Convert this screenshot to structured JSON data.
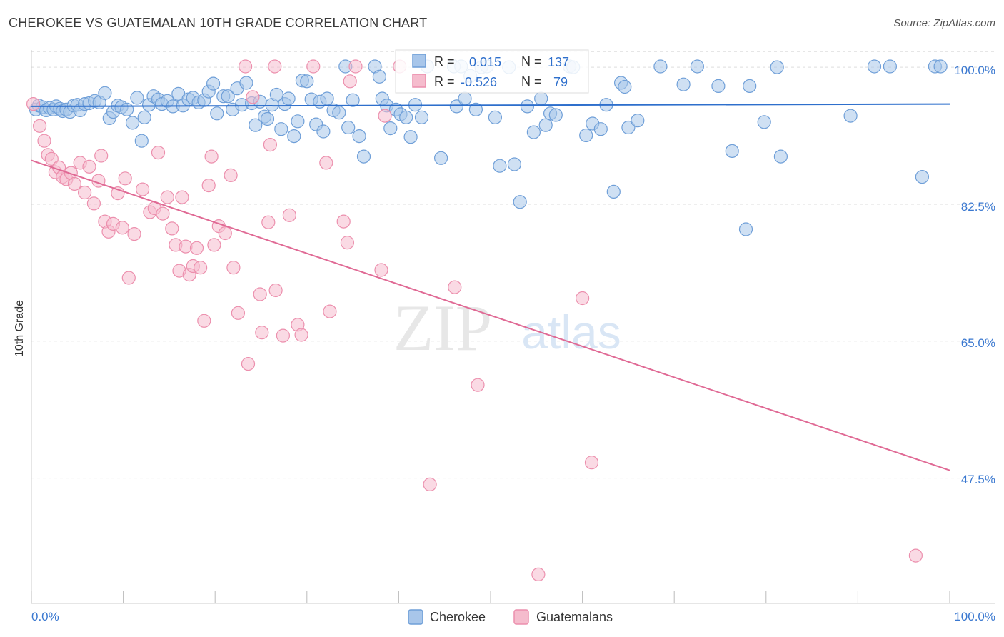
{
  "header": {
    "title": "CHEROKEE VS GUATEMALAN 10TH GRADE CORRELATION CHART",
    "source": "Source: ZipAtlas.com"
  },
  "watermark": {
    "zip": "ZIP",
    "atlas": "atlas"
  },
  "colors": {
    "cherokee_fill": "#a8c6ea",
    "cherokee_stroke": "#6f9fd8",
    "cherokee_line": "#2e6fcc",
    "guatemalan_fill": "#f5bccd",
    "guatemalan_stroke": "#ec8fad",
    "guatemalan_line": "#e06a95",
    "axis_value": "#3a78d0",
    "grid": "#dddddd"
  },
  "legend": {
    "r_label": "R =",
    "n_label": "N =",
    "entries": [
      {
        "r": "0.015",
        "n": "137"
      },
      {
        "r": "-0.526",
        "n": "79"
      }
    ]
  },
  "bottom_legend": [
    "Cherokee",
    "Guatemalans"
  ],
  "chart_data": {
    "type": "scatter",
    "title": "CHEROKEE VS GUATEMALAN 10TH GRADE CORRELATION CHART",
    "xlabel": "",
    "ylabel": "10th Grade",
    "xlim": [
      0,
      100
    ],
    "ylim": [
      31.5,
      102.2
    ],
    "x_tick_labels": [
      "0.0%",
      "100.0%"
    ],
    "y_ticks": [
      100.0,
      82.5,
      65.0,
      47.5
    ],
    "y_tick_labels": [
      "100.0%",
      "82.5%",
      "65.0%",
      "47.5%"
    ],
    "grid": true,
    "legend_position": "top-center",
    "series": [
      {
        "name": "Cherokee",
        "r": 0.015,
        "n": 137,
        "trend": {
          "x": [
            0,
            100
          ],
          "y": [
            95.0,
            95.3
          ]
        },
        "points": [
          [
            0.5,
            94.6
          ],
          [
            0.8,
            95.1
          ],
          [
            1.2,
            94.9
          ],
          [
            1.6,
            94.5
          ],
          [
            2.0,
            94.8
          ],
          [
            2.4,
            94.6
          ],
          [
            2.7,
            95.0
          ],
          [
            3.1,
            94.7
          ],
          [
            3.4,
            94.4
          ],
          [
            3.8,
            94.6
          ],
          [
            4.2,
            94.3
          ],
          [
            4.6,
            95.1
          ],
          [
            5.0,
            95.2
          ],
          [
            5.3,
            94.5
          ],
          [
            5.8,
            95.3
          ],
          [
            6.3,
            95.4
          ],
          [
            6.9,
            95.7
          ],
          [
            7.4,
            95.5
          ],
          [
            8.0,
            96.7
          ],
          [
            8.5,
            93.5
          ],
          [
            8.9,
            94.3
          ],
          [
            9.4,
            95.1
          ],
          [
            9.8,
            94.9
          ],
          [
            10.4,
            94.6
          ],
          [
            11.0,
            92.9
          ],
          [
            11.5,
            96.1
          ],
          [
            12.0,
            90.6
          ],
          [
            12.3,
            93.6
          ],
          [
            12.8,
            95.2
          ],
          [
            13.3,
            96.3
          ],
          [
            13.8,
            95.9
          ],
          [
            14.2,
            95.3
          ],
          [
            14.8,
            95.7
          ],
          [
            15.4,
            95.0
          ],
          [
            16.0,
            96.6
          ],
          [
            16.5,
            95.1
          ],
          [
            17.1,
            95.9
          ],
          [
            17.6,
            96.1
          ],
          [
            18.2,
            95.5
          ],
          [
            18.8,
            95.8
          ],
          [
            19.3,
            96.9
          ],
          [
            19.8,
            97.9
          ],
          [
            20.2,
            94.1
          ],
          [
            20.9,
            96.3
          ],
          [
            21.4,
            96.3
          ],
          [
            21.9,
            94.6
          ],
          [
            22.4,
            97.3
          ],
          [
            22.9,
            95.2
          ],
          [
            23.4,
            98.0
          ],
          [
            24.0,
            95.4
          ],
          [
            24.4,
            92.6
          ],
          [
            24.9,
            95.6
          ],
          [
            25.4,
            93.7
          ],
          [
            25.7,
            93.4
          ],
          [
            26.2,
            95.2
          ],
          [
            26.7,
            96.5
          ],
          [
            27.2,
            92.1
          ],
          [
            27.6,
            95.3
          ],
          [
            28.0,
            96.0
          ],
          [
            28.6,
            91.2
          ],
          [
            29.0,
            93.1
          ],
          [
            29.5,
            98.3
          ],
          [
            30.0,
            98.2
          ],
          [
            30.5,
            95.9
          ],
          [
            31.0,
            92.7
          ],
          [
            31.4,
            95.6
          ],
          [
            31.8,
            91.8
          ],
          [
            32.2,
            96.0
          ],
          [
            32.9,
            94.5
          ],
          [
            33.5,
            94.2
          ],
          [
            34.2,
            100.1
          ],
          [
            34.5,
            92.3
          ],
          [
            35.0,
            95.8
          ],
          [
            35.7,
            91.2
          ],
          [
            36.2,
            88.6
          ],
          [
            37.4,
            100.1
          ],
          [
            37.9,
            98.8
          ],
          [
            38.2,
            96.0
          ],
          [
            38.7,
            95.1
          ],
          [
            39.1,
            92.2
          ],
          [
            39.7,
            94.6
          ],
          [
            40.2,
            94.0
          ],
          [
            40.8,
            93.6
          ],
          [
            41.3,
            91.1
          ],
          [
            41.8,
            95.2
          ],
          [
            42.5,
            93.6
          ],
          [
            43.1,
            100.1
          ],
          [
            44.6,
            88.4
          ],
          [
            46.0,
            100.1
          ],
          [
            46.3,
            95.0
          ],
          [
            46.8,
            100.1
          ],
          [
            47.2,
            96.0
          ],
          [
            47.8,
            98.9
          ],
          [
            48.4,
            94.6
          ],
          [
            49.0,
            100.0
          ],
          [
            49.6,
            100.1
          ],
          [
            50.5,
            93.6
          ],
          [
            51.0,
            87.4
          ],
          [
            52.0,
            100.0
          ],
          [
            52.6,
            87.6
          ],
          [
            53.2,
            82.8
          ],
          [
            54.0,
            95.0
          ],
          [
            54.7,
            91.7
          ],
          [
            55.5,
            96.0
          ],
          [
            56.0,
            92.6
          ],
          [
            56.5,
            94.1
          ],
          [
            57.1,
            93.9
          ],
          [
            58.6,
            100.1
          ],
          [
            59.0,
            100.0
          ],
          [
            60.4,
            91.3
          ],
          [
            61.1,
            92.8
          ],
          [
            62.0,
            92.1
          ],
          [
            62.6,
            95.2
          ],
          [
            63.4,
            84.1
          ],
          [
            64.2,
            98.0
          ],
          [
            64.6,
            97.5
          ],
          [
            65.0,
            92.3
          ],
          [
            66.0,
            93.2
          ],
          [
            68.5,
            100.1
          ],
          [
            71.0,
            97.8
          ],
          [
            72.5,
            100.1
          ],
          [
            74.8,
            97.6
          ],
          [
            76.3,
            89.3
          ],
          [
            77.8,
            79.3
          ],
          [
            78.2,
            97.6
          ],
          [
            79.8,
            93.0
          ],
          [
            81.2,
            100.0
          ],
          [
            81.6,
            88.6
          ],
          [
            89.2,
            93.8
          ],
          [
            91.8,
            100.1
          ],
          [
            93.5,
            100.1
          ],
          [
            97.0,
            86.0
          ],
          [
            98.4,
            100.1
          ],
          [
            99.0,
            100.1
          ]
        ]
      },
      {
        "name": "Guatemalans",
        "r": -0.526,
        "n": 79,
        "trend": {
          "x": [
            0,
            100
          ],
          "y": [
            88.1,
            48.5
          ]
        },
        "points": [
          [
            0.2,
            95.3
          ],
          [
            0.9,
            92.5
          ],
          [
            1.4,
            90.6
          ],
          [
            1.8,
            88.8
          ],
          [
            2.2,
            88.3
          ],
          [
            2.6,
            86.6
          ],
          [
            3.0,
            87.2
          ],
          [
            3.4,
            86.0
          ],
          [
            3.8,
            85.7
          ],
          [
            4.3,
            86.5
          ],
          [
            4.7,
            85.1
          ],
          [
            5.3,
            87.8
          ],
          [
            5.8,
            84.0
          ],
          [
            6.3,
            87.3
          ],
          [
            6.8,
            82.6
          ],
          [
            7.3,
            85.5
          ],
          [
            7.6,
            88.7
          ],
          [
            8.0,
            80.3
          ],
          [
            8.4,
            79.0
          ],
          [
            8.9,
            80.0
          ],
          [
            9.4,
            83.9
          ],
          [
            9.9,
            79.5
          ],
          [
            10.2,
            85.8
          ],
          [
            10.6,
            73.1
          ],
          [
            11.2,
            78.7
          ],
          [
            12.1,
            84.4
          ],
          [
            12.9,
            81.5
          ],
          [
            13.4,
            82.0
          ],
          [
            13.8,
            89.1
          ],
          [
            14.3,
            81.3
          ],
          [
            14.8,
            83.4
          ],
          [
            15.3,
            79.4
          ],
          [
            15.7,
            77.3
          ],
          [
            16.1,
            74.0
          ],
          [
            16.4,
            83.4
          ],
          [
            16.8,
            77.1
          ],
          [
            17.2,
            73.5
          ],
          [
            17.6,
            74.6
          ],
          [
            18.0,
            76.9
          ],
          [
            18.4,
            74.4
          ],
          [
            18.8,
            67.6
          ],
          [
            19.3,
            84.9
          ],
          [
            19.6,
            88.6
          ],
          [
            19.9,
            77.3
          ],
          [
            20.4,
            79.7
          ],
          [
            21.1,
            78.8
          ],
          [
            21.7,
            86.2
          ],
          [
            22.0,
            74.4
          ],
          [
            22.5,
            68.6
          ],
          [
            23.3,
            100.1
          ],
          [
            23.6,
            62.1
          ],
          [
            24.1,
            96.2
          ],
          [
            24.9,
            71.0
          ],
          [
            25.1,
            66.1
          ],
          [
            25.8,
            80.2
          ],
          [
            26.0,
            90.1
          ],
          [
            26.5,
            100.1
          ],
          [
            26.6,
            71.5
          ],
          [
            27.4,
            65.7
          ],
          [
            28.1,
            81.1
          ],
          [
            29.0,
            67.1
          ],
          [
            29.4,
            65.8
          ],
          [
            30.7,
            100.1
          ],
          [
            32.1,
            87.8
          ],
          [
            32.5,
            68.8
          ],
          [
            34.0,
            80.3
          ],
          [
            34.4,
            77.6
          ],
          [
            34.7,
            98.2
          ],
          [
            35.3,
            100.1
          ],
          [
            38.1,
            74.1
          ],
          [
            38.5,
            93.8
          ],
          [
            40.1,
            100.1
          ],
          [
            43.4,
            46.7
          ],
          [
            46.1,
            71.9
          ],
          [
            48.6,
            59.4
          ],
          [
            55.2,
            35.2
          ],
          [
            60.0,
            70.5
          ],
          [
            61.0,
            49.5
          ],
          [
            96.3,
            37.6
          ]
        ]
      }
    ]
  }
}
